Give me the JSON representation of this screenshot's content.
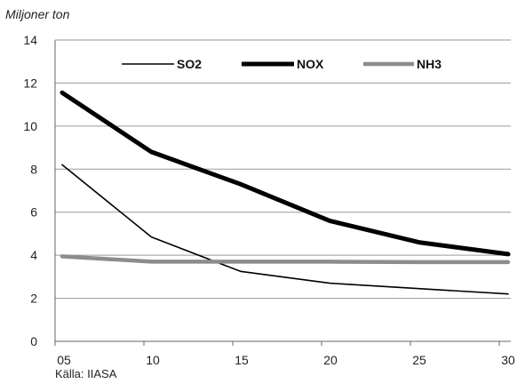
{
  "chart_data": {
    "type": "line",
    "unit_label": "Miljoner ton",
    "source": "Källa: IIASA",
    "x": [
      "05",
      "10",
      "15",
      "20",
      "25",
      "30"
    ],
    "ylim": [
      0,
      14
    ],
    "yticks": [
      "0",
      "2",
      "4",
      "6",
      "8",
      "10",
      "12",
      "14"
    ],
    "grid": true,
    "legend_position": "top",
    "series": [
      {
        "name": "SO2",
        "values": [
          8.2,
          4.85,
          3.25,
          2.7,
          2.45,
          2.2
        ],
        "color": "#000000"
      },
      {
        "name": "NOX",
        "values": [
          11.55,
          8.8,
          7.3,
          5.6,
          4.6,
          4.05
        ],
        "color": "#000000"
      },
      {
        "name": "NH3",
        "values": [
          3.95,
          3.7,
          3.7,
          3.7,
          3.68,
          3.68
        ],
        "color": "#8c8c8c"
      }
    ]
  }
}
